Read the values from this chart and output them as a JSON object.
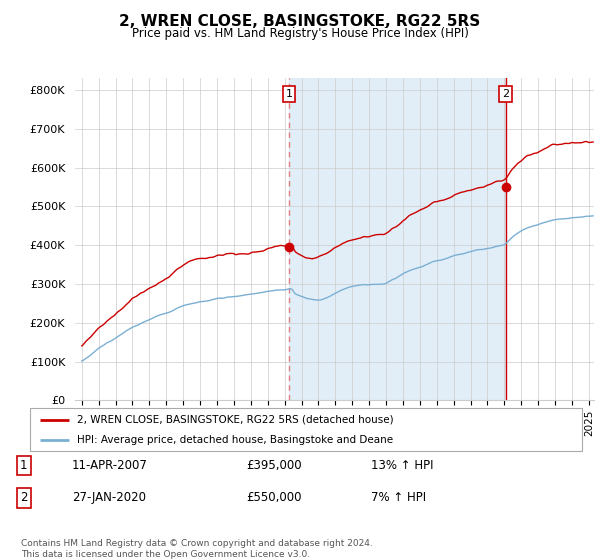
{
  "title": "2, WREN CLOSE, BASINGSTOKE, RG22 5RS",
  "subtitle": "Price paid vs. HM Land Registry's House Price Index (HPI)",
  "ylabel_ticks": [
    "£0",
    "£100K",
    "£200K",
    "£300K",
    "£400K",
    "£500K",
    "£600K",
    "£700K",
    "£800K"
  ],
  "ytick_values": [
    0,
    100000,
    200000,
    300000,
    400000,
    500000,
    600000,
    700000,
    800000
  ],
  "ylim": [
    0,
    830000
  ],
  "xlim_start": 1994.6,
  "xlim_end": 2025.3,
  "hpi_color": "#7aafd4",
  "hpi_fill_color": "#d6e8f5",
  "price_color": "#cc0000",
  "vline_color": "#e08080",
  "sale1_year": 2007.27,
  "sale1_price": 395000,
  "sale2_year": 2020.07,
  "sale2_price": 550000,
  "legend_line1": "2, WREN CLOSE, BASINGSTOKE, RG22 5RS (detached house)",
  "legend_line2": "HPI: Average price, detached house, Basingstoke and Deane",
  "footer": "Contains HM Land Registry data © Crown copyright and database right 2024.\nThis data is licensed under the Open Government Licence v3.0.",
  "background_color": "#ffffff",
  "grid_color": "#cccccc",
  "chart_bg": "#f0f4fa"
}
